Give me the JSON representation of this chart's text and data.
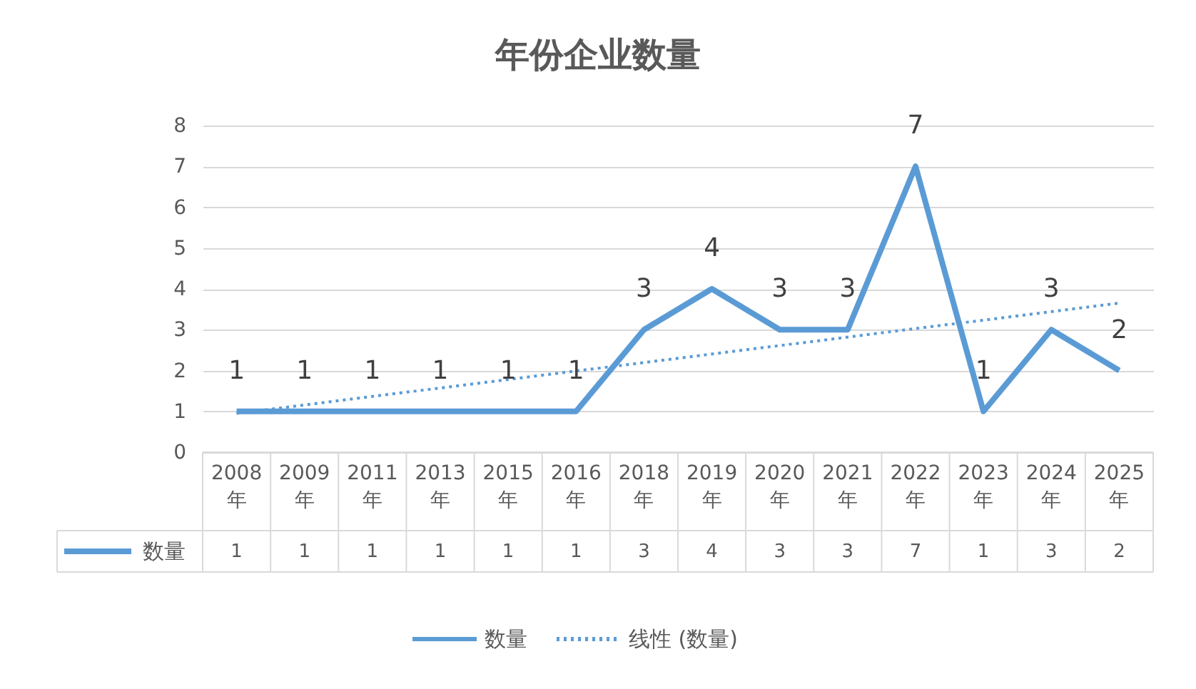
{
  "chart_data": {
    "type": "line",
    "title": "年份企业数量",
    "categories": [
      "2008年",
      "2009年",
      "2011年",
      "2013年",
      "2015年",
      "2016年",
      "2018年",
      "2019年",
      "2020年",
      "2021年",
      "2022年",
      "2023年",
      "2024年",
      "2025年"
    ],
    "series": [
      {
        "name": "数量",
        "color": "#5b9bd5",
        "line_style": "solid",
        "values": [
          1,
          1,
          1,
          1,
          1,
          1,
          3,
          4,
          3,
          3,
          7,
          1,
          3,
          2
        ]
      },
      {
        "name": "线性 (数量)",
        "type": "line",
        "color": "#5b9bd5",
        "line_style": "dotted",
        "data_labels": false,
        "x": [
          "2008年",
          "2025年"
        ],
        "values": [
          0.95,
          3.65
        ]
      }
    ],
    "annotations": [
      {
        "text": "1",
        "x": "2008年",
        "y": 1
      },
      {
        "text": "1",
        "x": "2009年",
        "y": 1
      },
      {
        "text": "1",
        "x": "2011年",
        "y": 1
      },
      {
        "text": "1",
        "x": "2013年",
        "y": 1
      },
      {
        "text": "1",
        "x": "2015年",
        "y": 1
      },
      {
        "text": "1",
        "x": "2016年",
        "y": 1
      },
      {
        "text": "3",
        "x": "2018年",
        "y": 3
      },
      {
        "text": "4",
        "x": "2019年",
        "y": 4
      },
      {
        "text": "3",
        "x": "2020年",
        "y": 3
      },
      {
        "text": "3",
        "x": "2021年",
        "y": 3
      },
      {
        "text": "7",
        "x": "2022年",
        "y": 7
      },
      {
        "text": "1",
        "x": "2023年",
        "y": 1
      },
      {
        "text": "3",
        "x": "2024年",
        "y": 3
      },
      {
        "text": "2",
        "x": "2025年",
        "y": 2
      }
    ],
    "ylim": [
      0,
      8
    ],
    "yticks": [
      0,
      1,
      2,
      3,
      4,
      5,
      6,
      7,
      8
    ],
    "grid": "y",
    "legend": "bottom",
    "data_labels": true,
    "marker": "none"
  }
}
